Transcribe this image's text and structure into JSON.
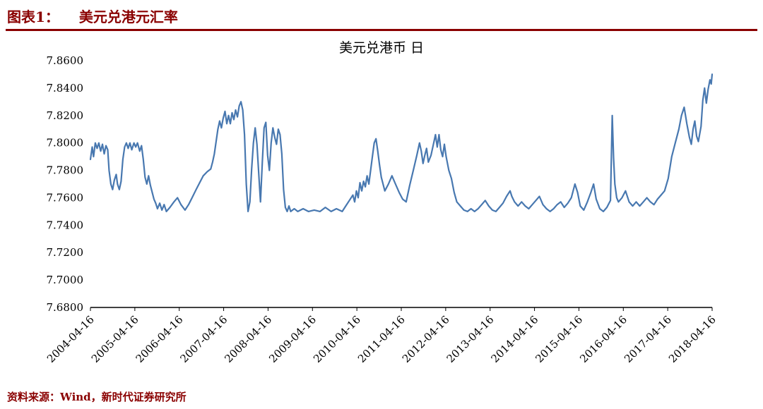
{
  "header": {
    "label": "图表1：",
    "title": "美元兑港元汇率"
  },
  "source": "资料来源：Wind，新时代证券研究所",
  "colors": {
    "accent": "#8a0000",
    "line": "#4878b0",
    "axis": "#000000"
  },
  "chart_data": {
    "type": "line",
    "title": "美元兑港币 日",
    "xlabel": "",
    "ylabel": "",
    "grid": false,
    "legend": "none",
    "xlim": [
      2004.29,
      2018.29
    ],
    "ylim": [
      7.68,
      7.86
    ],
    "y_ticks": [
      7.68,
      7.7,
      7.72,
      7.74,
      7.76,
      7.78,
      7.8,
      7.82,
      7.84,
      7.86
    ],
    "y_tick_labels": [
      "7.6800",
      "7.7000",
      "7.7200",
      "7.7400",
      "7.7600",
      "7.7800",
      "7.8000",
      "7.8200",
      "7.8400",
      "7.8600"
    ],
    "x_tick_values": [
      2004.29,
      2005.29,
      2006.29,
      2007.29,
      2008.29,
      2009.29,
      2010.29,
      2011.29,
      2012.29,
      2013.29,
      2014.29,
      2015.29,
      2016.29,
      2017.29,
      2018.29
    ],
    "x_tick_labels": [
      "2004-04-16",
      "2005-04-16",
      "2006-04-16",
      "2007-04-16",
      "2008-04-16",
      "2009-04-16",
      "2010-04-16",
      "2011-04-16",
      "2012-04-16",
      "2013-04-16",
      "2014-04-16",
      "2015-04-16",
      "2016-04-16",
      "2017-04-16",
      "2018-04-16"
    ],
    "series": [
      {
        "name": "美元兑港币",
        "color": "#4878b0",
        "points": [
          [
            2004.29,
            7.788
          ],
          [
            2004.33,
            7.797
          ],
          [
            2004.36,
            7.79
          ],
          [
            2004.4,
            7.8
          ],
          [
            2004.44,
            7.796
          ],
          [
            2004.48,
            7.8
          ],
          [
            2004.52,
            7.794
          ],
          [
            2004.56,
            7.799
          ],
          [
            2004.6,
            7.792
          ],
          [
            2004.64,
            7.798
          ],
          [
            2004.68,
            7.795
          ],
          [
            2004.71,
            7.78
          ],
          [
            2004.75,
            7.77
          ],
          [
            2004.79,
            7.766
          ],
          [
            2004.83,
            7.773
          ],
          [
            2004.87,
            7.777
          ],
          [
            2004.9,
            7.77
          ],
          [
            2004.94,
            7.766
          ],
          [
            2004.98,
            7.772
          ],
          [
            2005.02,
            7.788
          ],
          [
            2005.06,
            7.797
          ],
          [
            2005.1,
            7.8
          ],
          [
            2005.14,
            7.796
          ],
          [
            2005.18,
            7.8
          ],
          [
            2005.22,
            7.795
          ],
          [
            2005.27,
            7.8
          ],
          [
            2005.31,
            7.797
          ],
          [
            2005.35,
            7.8
          ],
          [
            2005.4,
            7.794
          ],
          [
            2005.44,
            7.798
          ],
          [
            2005.48,
            7.788
          ],
          [
            2005.52,
            7.775
          ],
          [
            2005.56,
            7.77
          ],
          [
            2005.6,
            7.776
          ],
          [
            2005.64,
            7.769
          ],
          [
            2005.68,
            7.764
          ],
          [
            2005.72,
            7.759
          ],
          [
            2005.76,
            7.756
          ],
          [
            2005.8,
            7.752
          ],
          [
            2005.85,
            7.756
          ],
          [
            2005.9,
            7.751
          ],
          [
            2005.95,
            7.755
          ],
          [
            2006.0,
            7.75
          ],
          [
            2006.08,
            7.753
          ],
          [
            2006.17,
            7.757
          ],
          [
            2006.25,
            7.76
          ],
          [
            2006.33,
            7.755
          ],
          [
            2006.42,
            7.751
          ],
          [
            2006.5,
            7.755
          ],
          [
            2006.58,
            7.76
          ],
          [
            2006.67,
            7.766
          ],
          [
            2006.75,
            7.771
          ],
          [
            2006.83,
            7.776
          ],
          [
            2006.92,
            7.779
          ],
          [
            2007.0,
            7.781
          ],
          [
            2007.04,
            7.786
          ],
          [
            2007.08,
            7.792
          ],
          [
            2007.12,
            7.801
          ],
          [
            2007.16,
            7.81
          ],
          [
            2007.2,
            7.816
          ],
          [
            2007.24,
            7.811
          ],
          [
            2007.28,
            7.818
          ],
          [
            2007.32,
            7.823
          ],
          [
            2007.36,
            7.814
          ],
          [
            2007.4,
            7.82
          ],
          [
            2007.44,
            7.814
          ],
          [
            2007.48,
            7.822
          ],
          [
            2007.52,
            7.817
          ],
          [
            2007.56,
            7.824
          ],
          [
            2007.6,
            7.819
          ],
          [
            2007.64,
            7.827
          ],
          [
            2007.68,
            7.83
          ],
          [
            2007.72,
            7.824
          ],
          [
            2007.76,
            7.806
          ],
          [
            2007.8,
            7.77
          ],
          [
            2007.84,
            7.75
          ],
          [
            2007.88,
            7.757
          ],
          [
            2007.92,
            7.781
          ],
          [
            2007.96,
            7.8
          ],
          [
            2008.0,
            7.811
          ],
          [
            2008.04,
            7.799
          ],
          [
            2008.08,
            7.778
          ],
          [
            2008.12,
            7.757
          ],
          [
            2008.16,
            7.786
          ],
          [
            2008.2,
            7.811
          ],
          [
            2008.24,
            7.815
          ],
          [
            2008.28,
            7.791
          ],
          [
            2008.32,
            7.78
          ],
          [
            2008.36,
            7.8
          ],
          [
            2008.4,
            7.811
          ],
          [
            2008.44,
            7.804
          ],
          [
            2008.48,
            7.799
          ],
          [
            2008.52,
            7.81
          ],
          [
            2008.56,
            7.806
          ],
          [
            2008.6,
            7.792
          ],
          [
            2008.64,
            7.766
          ],
          [
            2008.68,
            7.753
          ],
          [
            2008.72,
            7.75
          ],
          [
            2008.76,
            7.754
          ],
          [
            2008.8,
            7.75
          ],
          [
            2008.88,
            7.752
          ],
          [
            2008.96,
            7.75
          ],
          [
            2009.08,
            7.752
          ],
          [
            2009.2,
            7.75
          ],
          [
            2009.33,
            7.751
          ],
          [
            2009.46,
            7.75
          ],
          [
            2009.58,
            7.753
          ],
          [
            2009.71,
            7.75
          ],
          [
            2009.83,
            7.752
          ],
          [
            2009.96,
            7.75
          ],
          [
            2010.04,
            7.754
          ],
          [
            2010.12,
            7.758
          ],
          [
            2010.2,
            7.762
          ],
          [
            2010.24,
            7.757
          ],
          [
            2010.28,
            7.765
          ],
          [
            2010.32,
            7.76
          ],
          [
            2010.36,
            7.771
          ],
          [
            2010.4,
            7.765
          ],
          [
            2010.44,
            7.772
          ],
          [
            2010.48,
            7.768
          ],
          [
            2010.52,
            7.776
          ],
          [
            2010.56,
            7.77
          ],
          [
            2010.6,
            7.78
          ],
          [
            2010.64,
            7.79
          ],
          [
            2010.68,
            7.8
          ],
          [
            2010.72,
            7.803
          ],
          [
            2010.76,
            7.794
          ],
          [
            2010.8,
            7.784
          ],
          [
            2010.84,
            7.775
          ],
          [
            2010.88,
            7.77
          ],
          [
            2010.92,
            7.765
          ],
          [
            2011.0,
            7.77
          ],
          [
            2011.08,
            7.776
          ],
          [
            2011.16,
            7.77
          ],
          [
            2011.24,
            7.764
          ],
          [
            2011.32,
            7.759
          ],
          [
            2011.4,
            7.757
          ],
          [
            2011.48,
            7.769
          ],
          [
            2011.56,
            7.78
          ],
          [
            2011.64,
            7.791
          ],
          [
            2011.7,
            7.8
          ],
          [
            2011.74,
            7.794
          ],
          [
            2011.78,
            7.785
          ],
          [
            2011.82,
            7.791
          ],
          [
            2011.86,
            7.796
          ],
          [
            2011.9,
            7.786
          ],
          [
            2011.96,
            7.791
          ],
          [
            2012.02,
            7.8
          ],
          [
            2012.06,
            7.806
          ],
          [
            2012.1,
            7.797
          ],
          [
            2012.14,
            7.806
          ],
          [
            2012.18,
            7.795
          ],
          [
            2012.22,
            7.79
          ],
          [
            2012.26,
            7.799
          ],
          [
            2012.3,
            7.79
          ],
          [
            2012.36,
            7.78
          ],
          [
            2012.42,
            7.774
          ],
          [
            2012.48,
            7.764
          ],
          [
            2012.54,
            7.757
          ],
          [
            2012.62,
            7.754
          ],
          [
            2012.7,
            7.751
          ],
          [
            2012.78,
            7.75
          ],
          [
            2012.86,
            7.752
          ],
          [
            2012.94,
            7.75
          ],
          [
            2013.02,
            7.752
          ],
          [
            2013.1,
            7.755
          ],
          [
            2013.18,
            7.758
          ],
          [
            2013.26,
            7.754
          ],
          [
            2013.34,
            7.751
          ],
          [
            2013.42,
            7.75
          ],
          [
            2013.5,
            7.753
          ],
          [
            2013.58,
            7.756
          ],
          [
            2013.66,
            7.761
          ],
          [
            2013.74,
            7.765
          ],
          [
            2013.78,
            7.761
          ],
          [
            2013.84,
            7.757
          ],
          [
            2013.92,
            7.754
          ],
          [
            2014.0,
            7.757
          ],
          [
            2014.08,
            7.754
          ],
          [
            2014.16,
            7.752
          ],
          [
            2014.24,
            7.755
          ],
          [
            2014.32,
            7.758
          ],
          [
            2014.4,
            7.761
          ],
          [
            2014.48,
            7.755
          ],
          [
            2014.56,
            7.752
          ],
          [
            2014.64,
            7.75
          ],
          [
            2014.72,
            7.752
          ],
          [
            2014.8,
            7.755
          ],
          [
            2014.88,
            7.757
          ],
          [
            2014.96,
            7.753
          ],
          [
            2015.04,
            7.756
          ],
          [
            2015.12,
            7.76
          ],
          [
            2015.2,
            7.77
          ],
          [
            2015.26,
            7.764
          ],
          [
            2015.32,
            7.754
          ],
          [
            2015.4,
            7.751
          ],
          [
            2015.48,
            7.757
          ],
          [
            2015.56,
            7.764
          ],
          [
            2015.62,
            7.77
          ],
          [
            2015.68,
            7.759
          ],
          [
            2015.76,
            7.752
          ],
          [
            2015.84,
            7.75
          ],
          [
            2015.92,
            7.753
          ],
          [
            2016.0,
            7.758
          ],
          [
            2016.04,
            7.82
          ],
          [
            2016.07,
            7.789
          ],
          [
            2016.1,
            7.77
          ],
          [
            2016.14,
            7.76
          ],
          [
            2016.18,
            7.757
          ],
          [
            2016.26,
            7.76
          ],
          [
            2016.34,
            7.765
          ],
          [
            2016.42,
            7.757
          ],
          [
            2016.5,
            7.754
          ],
          [
            2016.58,
            7.757
          ],
          [
            2016.66,
            7.754
          ],
          [
            2016.74,
            7.757
          ],
          [
            2016.82,
            7.76
          ],
          [
            2016.9,
            7.757
          ],
          [
            2016.98,
            7.755
          ],
          [
            2017.06,
            7.759
          ],
          [
            2017.14,
            7.762
          ],
          [
            2017.22,
            7.765
          ],
          [
            2017.3,
            7.774
          ],
          [
            2017.38,
            7.79
          ],
          [
            2017.46,
            7.8
          ],
          [
            2017.54,
            7.81
          ],
          [
            2017.6,
            7.82
          ],
          [
            2017.66,
            7.826
          ],
          [
            2017.72,
            7.814
          ],
          [
            2017.78,
            7.804
          ],
          [
            2017.82,
            7.799
          ],
          [
            2017.86,
            7.81
          ],
          [
            2017.9,
            7.816
          ],
          [
            2017.94,
            7.805
          ],
          [
            2017.98,
            7.801
          ],
          [
            2018.04,
            7.812
          ],
          [
            2018.08,
            7.831
          ],
          [
            2018.12,
            7.84
          ],
          [
            2018.16,
            7.829
          ],
          [
            2018.2,
            7.839
          ],
          [
            2018.24,
            7.846
          ],
          [
            2018.27,
            7.843
          ],
          [
            2018.29,
            7.85
          ]
        ]
      }
    ]
  }
}
